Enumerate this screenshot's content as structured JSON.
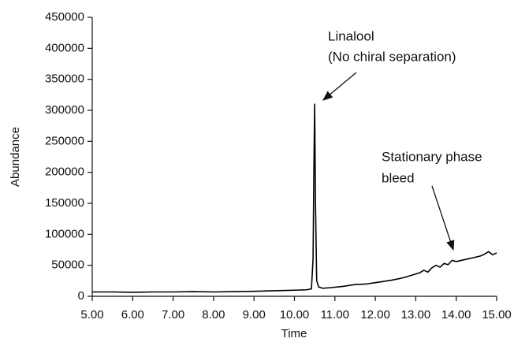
{
  "chart_data": {
    "type": "line",
    "x_label": "Time",
    "y_label": "Abundance",
    "annotations": [
      "Linalool",
      "(No chiral separation)",
      "Stationary phase",
      "bleed"
    ],
    "x": [
      5,
      5.5,
      6,
      6.5,
      7,
      7.5,
      8,
      8.5,
      9,
      9.5,
      9.8,
      10.1,
      10.3,
      10.42,
      10.46,
      10.48,
      10.5,
      10.52,
      10.55,
      10.6,
      10.7,
      10.9,
      11.2,
      11.5,
      11.8,
      12.1,
      12.4,
      12.7,
      12.9,
      13.1,
      13.2,
      13.3,
      13.4,
      13.5,
      13.6,
      13.7,
      13.8,
      13.9,
      14,
      14.2,
      14.4,
      14.6,
      14.7,
      14.8,
      14.9,
      15
    ],
    "values": [
      7000,
      7000,
      6500,
      7000,
      7000,
      7500,
      7000,
      7500,
      8000,
      9000,
      9500,
      10000,
      10500,
      12000,
      60000,
      200000,
      310000,
      150000,
      25000,
      15000,
      13000,
      14000,
      16000,
      19000,
      20000,
      23000,
      26000,
      30000,
      34000,
      38000,
      42000,
      39000,
      46000,
      50000,
      47000,
      53000,
      51000,
      58000,
      56000,
      59000,
      62000,
      65000,
      68000,
      72000,
      67000,
      70000
    ],
    "color": "#000000",
    "xlim": [
      5,
      15
    ],
    "xticks": [
      {
        "value": 5,
        "label": "5.00"
      },
      {
        "value": 6,
        "label": "6.00"
      },
      {
        "value": 7,
        "label": "7.00"
      },
      {
        "value": 8,
        "label": "8.00"
      },
      {
        "value": 9,
        "label": "9.00"
      },
      {
        "value": 10,
        "label": "10.00"
      },
      {
        "value": 11,
        "label": "11.00"
      },
      {
        "value": 12,
        "label": "12.00"
      },
      {
        "value": 13,
        "label": "13.00"
      },
      {
        "value": 14,
        "label": "14.00"
      },
      {
        "value": 15,
        "label": "15.00"
      }
    ],
    "ylim": [
      0,
      450000
    ],
    "yticks": [
      0,
      50000,
      100000,
      150000,
      200000,
      250000,
      300000,
      350000,
      400000,
      450000
    ],
    "grid": false
  }
}
